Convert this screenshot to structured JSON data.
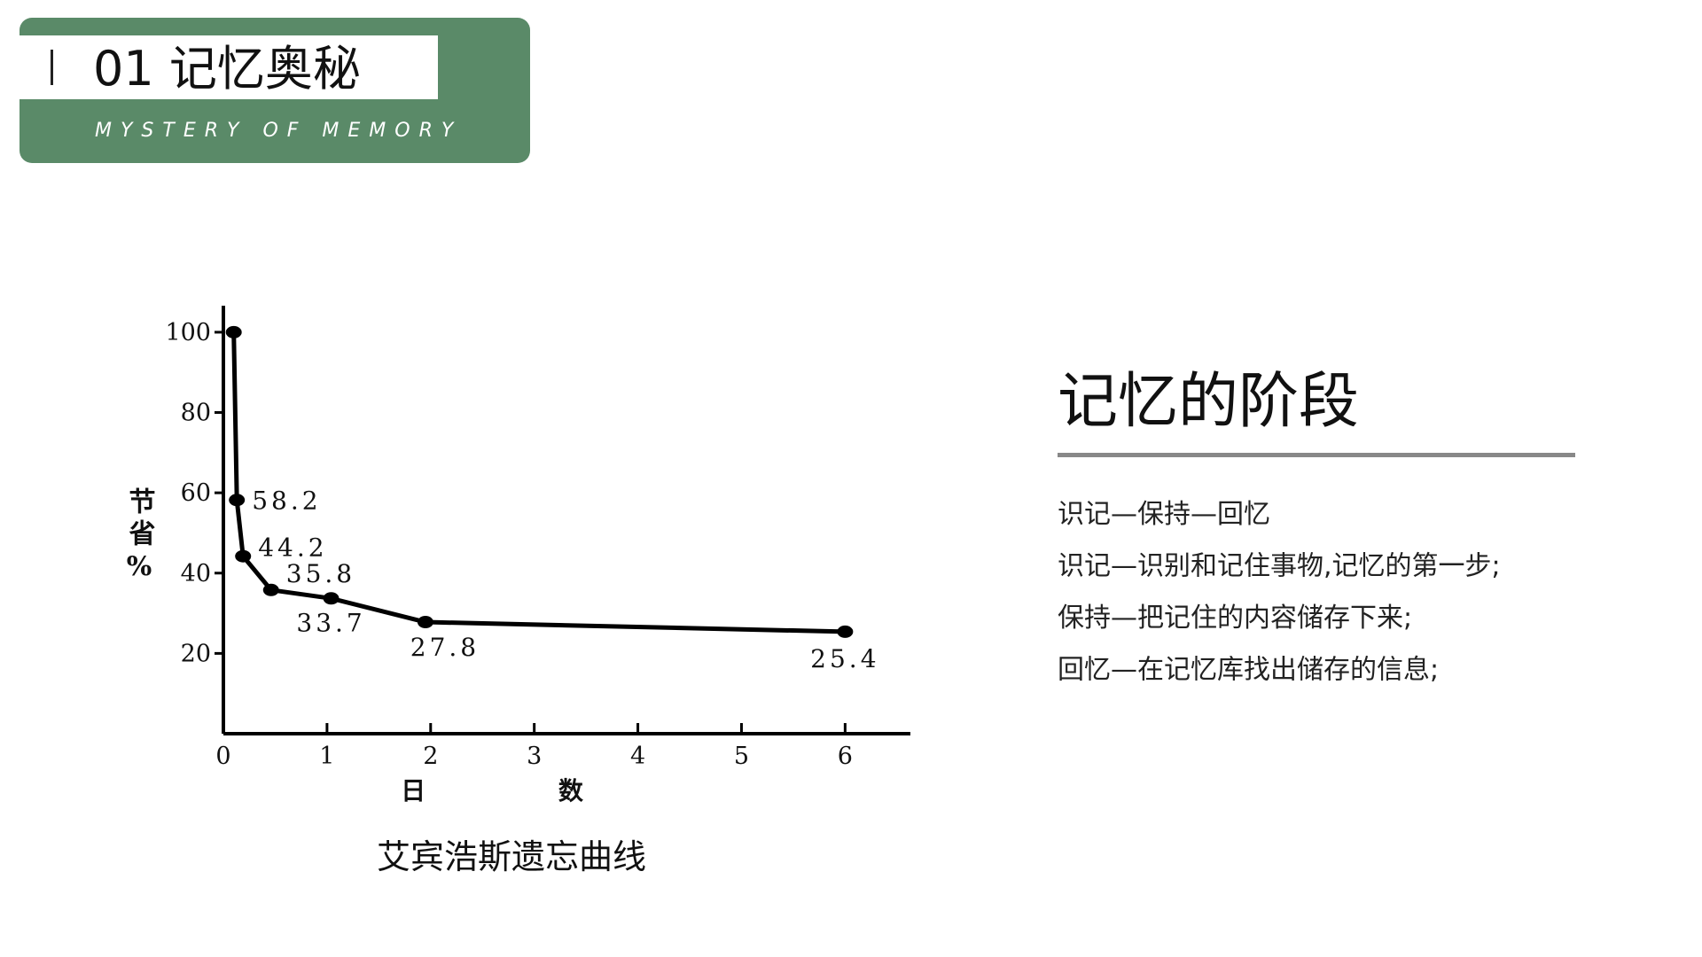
{
  "header": {
    "title": "01 记忆奥秘",
    "subtitle": "MYSTERY OF MEMORY"
  },
  "chart_data": {
    "type": "line",
    "caption": "艾宾浩斯遗忘曲线",
    "x_label": "日 数",
    "y_label": "节省%",
    "x": [
      0.1,
      0.13,
      0.19,
      0.46,
      1.04,
      1.95,
      6
    ],
    "series": [
      {
        "color": "#000000",
        "values": [
          100,
          58.2,
          44.2,
          35.8,
          33.7,
          27.8,
          25.4
        ],
        "value_labels": [
          null,
          "58.2",
          "44.2",
          "35.8",
          "33.7",
          "27.8",
          "25.4"
        ]
      }
    ],
    "xlim": [
      0,
      6.63
    ],
    "ylim": [
      0,
      106.6
    ],
    "xticks": [
      0,
      1,
      2,
      3,
      4,
      5,
      6
    ],
    "yticks": [
      20,
      40,
      60,
      80,
      100
    ],
    "grid": false
  },
  "panel": {
    "heading": "记忆的阶段",
    "lines": [
      "识记—保持—回忆",
      "识记—识别和记住事物,记忆的第一步;",
      "保持—把记住的内容储存下来;",
      "回忆—在记忆库找出储存的信息;"
    ]
  }
}
